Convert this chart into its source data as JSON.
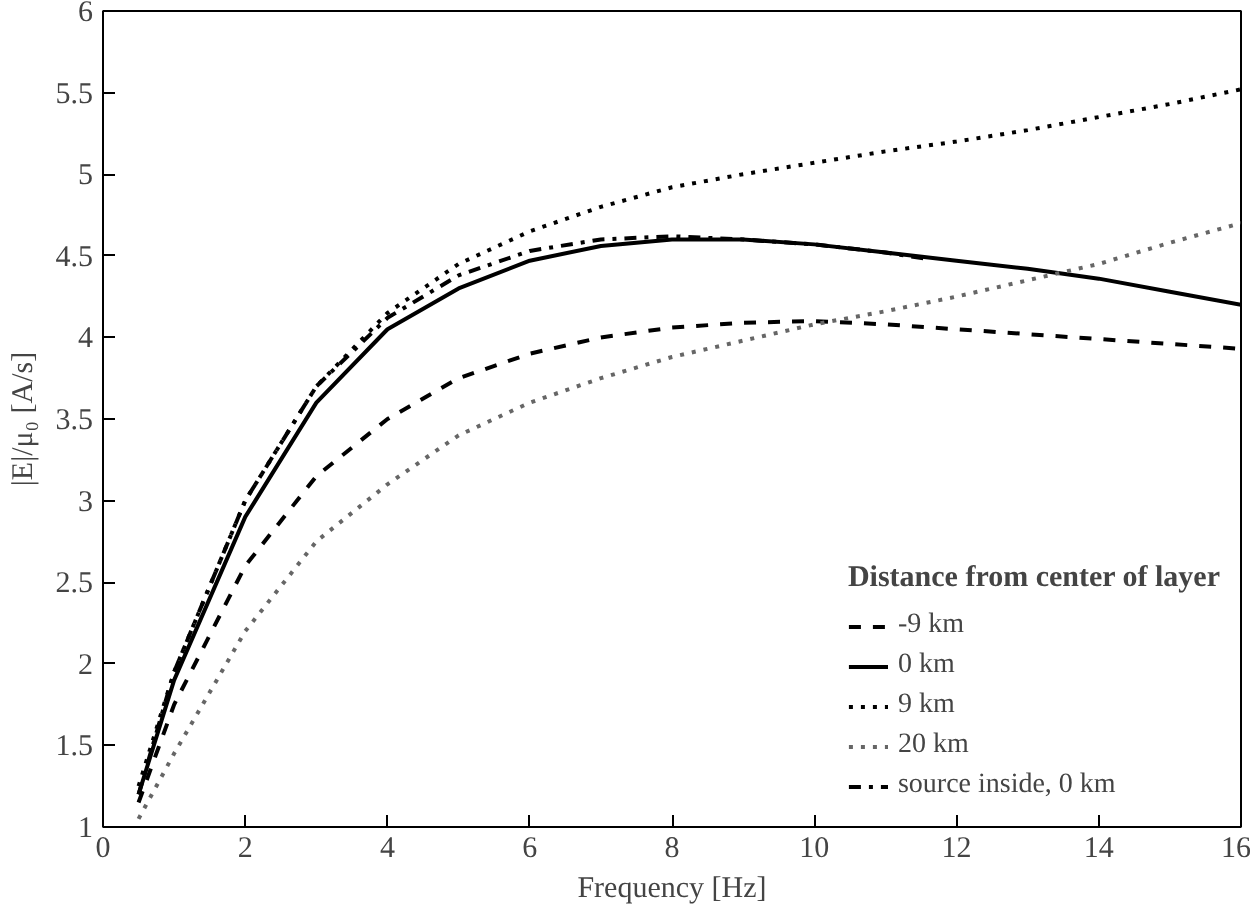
{
  "chart_data": {
    "type": "line",
    "xlabel": "Frequency [Hz]",
    "ylabel": "|E|/μ₀ [A/s]",
    "legend_title": "Distance from center of layer",
    "legend": "bottom right",
    "grid": false,
    "xlim": [
      0,
      16
    ],
    "ylim": [
      1,
      6
    ],
    "xticks": [
      0,
      2,
      4,
      6,
      8,
      10,
      12,
      14,
      16
    ],
    "yticks": [
      1,
      1.5,
      2,
      2.5,
      3,
      3.5,
      4,
      4.5,
      5,
      5.5,
      6
    ],
    "series": [
      {
        "name": "-9 km",
        "color": "#000000",
        "line_style": "dashed",
        "x": [
          0.5,
          1,
          2,
          3,
          4,
          5,
          6,
          7,
          8,
          9,
          10,
          11,
          12,
          13,
          14,
          15,
          16
        ],
        "values": [
          1.15,
          1.75,
          2.6,
          3.15,
          3.5,
          3.75,
          3.9,
          4.0,
          4.06,
          4.09,
          4.1,
          4.08,
          4.05,
          4.02,
          3.99,
          3.96,
          3.93
        ]
      },
      {
        "name": "0 km",
        "color": "#000000",
        "line_style": "solid",
        "x": [
          0.5,
          1,
          2,
          3,
          4,
          5,
          6,
          7,
          8,
          9,
          10,
          11,
          12,
          13,
          14,
          15,
          16
        ],
        "values": [
          1.2,
          1.9,
          2.9,
          3.6,
          4.05,
          4.3,
          4.47,
          4.56,
          4.6,
          4.6,
          4.57,
          4.52,
          4.47,
          4.42,
          4.36,
          4.28,
          4.2
        ]
      },
      {
        "name": "9 km",
        "color": "#000000",
        "line_style": "dotted",
        "x": [
          0.5,
          1,
          2,
          3,
          4,
          5,
          6,
          7,
          8,
          9,
          10,
          11,
          12,
          13,
          14,
          15,
          16
        ],
        "values": [
          1.25,
          1.95,
          3.0,
          3.7,
          4.15,
          4.45,
          4.65,
          4.8,
          4.92,
          5.0,
          5.07,
          5.14,
          5.2,
          5.27,
          5.35,
          5.43,
          5.52
        ]
      },
      {
        "name": "20 km",
        "color": "#666666",
        "line_style": "dotted",
        "x": [
          0.5,
          1,
          2,
          3,
          4,
          5,
          6,
          7,
          8,
          9,
          10,
          11,
          12,
          13,
          14,
          15,
          16
        ],
        "values": [
          1.05,
          1.45,
          2.2,
          2.75,
          3.1,
          3.4,
          3.6,
          3.75,
          3.88,
          3.98,
          4.08,
          4.16,
          4.25,
          4.35,
          4.45,
          4.58,
          4.7
        ]
      },
      {
        "name": "source inside, 0 km",
        "color": "#000000",
        "line_style": "dashdot",
        "x": [
          0.5,
          1,
          2,
          3,
          4,
          5,
          6,
          7,
          8,
          9,
          10,
          11,
          11.6
        ],
        "values": [
          1.2,
          1.95,
          3.0,
          3.7,
          4.12,
          4.38,
          4.53,
          4.6,
          4.62,
          4.6,
          4.57,
          4.52,
          4.48
        ]
      }
    ]
  }
}
